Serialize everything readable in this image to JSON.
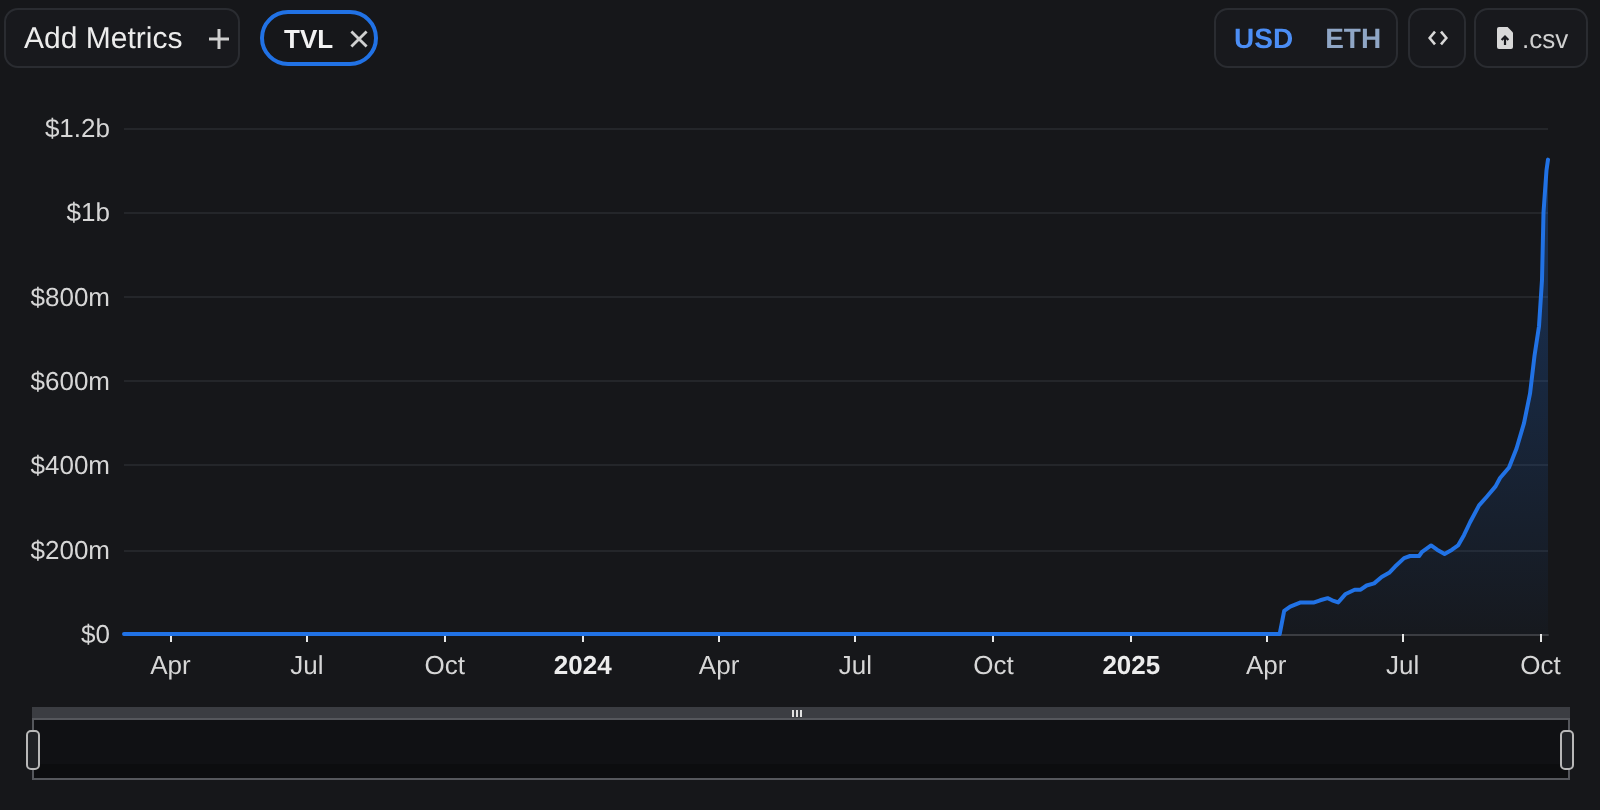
{
  "chart_data": {
    "type": "area",
    "annotations": [
      "Add Metrics",
      "TVL",
      "USD",
      "ETH",
      ".csv"
    ],
    "x": [
      "2023-03-01",
      "2025-04-10",
      "2025-04-13",
      "2025-04-17",
      "2025-04-24",
      "2025-05-03",
      "2025-05-07",
      "2025-05-12",
      "2025-05-15",
      "2025-05-19",
      "2025-05-24",
      "2025-05-30",
      "2025-06-03",
      "2025-06-07",
      "2025-06-12",
      "2025-06-17",
      "2025-06-22",
      "2025-06-26",
      "2025-07-02",
      "2025-07-06",
      "2025-07-12",
      "2025-07-14",
      "2025-07-20",
      "2025-07-24",
      "2025-07-29",
      "2025-08-03",
      "2025-08-07",
      "2025-08-11",
      "2025-08-15",
      "2025-08-21",
      "2025-08-26",
      "2025-09-01",
      "2025-09-04",
      "2025-09-10",
      "2025-09-15",
      "2025-09-20",
      "2025-09-24",
      "2025-09-27",
      "2025-09-30",
      "2025-10-02",
      "2025-10-03",
      "2025-10-05",
      "2025-10-06"
    ],
    "values": [
      0,
      0,
      55000000,
      65000000,
      75000000,
      75000000,
      80000000,
      85000000,
      80000000,
      75000000,
      95000000,
      105000000,
      105000000,
      115000000,
      120000000,
      135000000,
      145000000,
      160000000,
      180000000,
      185000000,
      185000000,
      195000000,
      210000000,
      200000000,
      190000000,
      200000000,
      210000000,
      235000000,
      265000000,
      305000000,
      325000000,
      350000000,
      370000000,
      395000000,
      440000000,
      500000000,
      570000000,
      660000000,
      730000000,
      840000000,
      1000000000,
      1100000000,
      1125000000
    ],
    "color": "#2172e5",
    "xlim": [
      "2023-03-01",
      "2025-10-06"
    ],
    "xticks": [
      {
        "value": "2023-04-01",
        "label": "Apr"
      },
      {
        "value": "2023-07-01",
        "label": "Jul"
      },
      {
        "value": "2023-10-01",
        "label": "Oct"
      },
      {
        "value": "2024-01-01",
        "label": "2024"
      },
      {
        "value": "2024-04-01",
        "label": "Apr"
      },
      {
        "value": "2024-07-01",
        "label": "Jul"
      },
      {
        "value": "2024-10-01",
        "label": "Oct"
      },
      {
        "value": "2025-01-01",
        "label": "2025"
      },
      {
        "value": "2025-04-01",
        "label": "Apr"
      },
      {
        "value": "2025-07-01",
        "label": "Jul"
      },
      {
        "value": "2025-10-01",
        "label": "Oct"
      }
    ],
    "ylim": [
      0,
      1200000000
    ],
    "yticks": [
      {
        "value": 0,
        "label": "$0"
      },
      {
        "value": 200000000,
        "label": "$200m"
      },
      {
        "value": 400000000,
        "label": "$400m"
      },
      {
        "value": 600000000,
        "label": "$600m"
      },
      {
        "value": 800000000,
        "label": "$800m"
      },
      {
        "value": 1000000000,
        "label": "$1b"
      },
      {
        "value": 1200000000,
        "label": "$1.2b"
      }
    ],
    "grid": "y",
    "marker": "none",
    "line_style": "solid"
  }
}
